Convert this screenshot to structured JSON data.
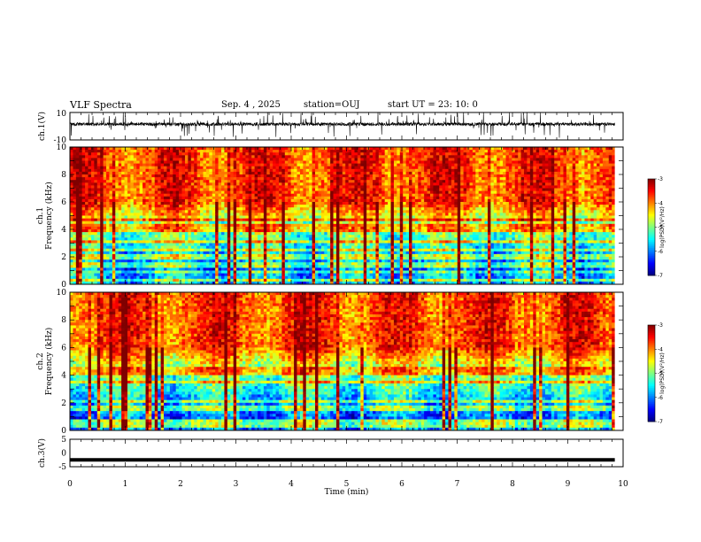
{
  "header": {
    "title": "VLF Spectra",
    "date": "Sep. 4 , 2025",
    "station": "station=OUJ",
    "start": "start  UT =   23: 10: 0"
  },
  "colors": {
    "jet": [
      "#00007f",
      "#0000ff",
      "#007fff",
      "#00ffff",
      "#7fff7f",
      "#ffff00",
      "#ff7f00",
      "#ff0000",
      "#7f0000"
    ]
  },
  "chart_data": [
    {
      "type": "line",
      "name": "ch1-waveform",
      "ylabel": "ch.1(V)",
      "ylim": [
        -10,
        10
      ],
      "yticks": [
        "10",
        "-10"
      ],
      "baseline": 1.5,
      "noise_sd": 1.2,
      "duration_min": 9.85
    },
    {
      "type": "heatmap",
      "name": "ch1-spectrogram",
      "ylabel1": "ch.1",
      "ylabel2": "Frequency  (kHz)",
      "ylim": [
        0,
        10
      ],
      "yticks": [
        "0",
        "2",
        "4",
        "6",
        "8",
        "10"
      ],
      "xlim_min": [
        0,
        9.85
      ],
      "colorbar": {
        "label": "log(PSD)(V²/Hz)",
        "range": [
          -7,
          -3
        ],
        "ticks": [
          "-3",
          "-4",
          "-5",
          "-6",
          "-7"
        ]
      },
      "seed": 7
    },
    {
      "type": "heatmap",
      "name": "ch2-spectrogram",
      "ylabel1": "ch.2",
      "ylabel2": "Frequency  (kHz)",
      "ylim": [
        0,
        10
      ],
      "yticks": [
        "0",
        "2",
        "4",
        "6",
        "8",
        "10"
      ],
      "xlim_min": [
        0,
        9.85
      ],
      "colorbar": {
        "label": "log(PSD)(V²/Hz)",
        "range": [
          -7,
          -3
        ],
        "ticks": [
          "-3",
          "-4",
          "-5",
          "-6",
          "-7"
        ]
      },
      "seed": 23
    },
    {
      "type": "line",
      "name": "ch3-waveform",
      "ylabel": "ch.3(V)",
      "ylim": [
        -5,
        5
      ],
      "yticks": [
        "5",
        "0",
        "-5"
      ],
      "value": -2.5
    }
  ],
  "xaxis": {
    "label": "Time  (min)",
    "range": [
      0,
      10
    ],
    "ticks": [
      "0",
      "1",
      "2",
      "3",
      "4",
      "5",
      "6",
      "7",
      "8",
      "9",
      "10"
    ]
  }
}
